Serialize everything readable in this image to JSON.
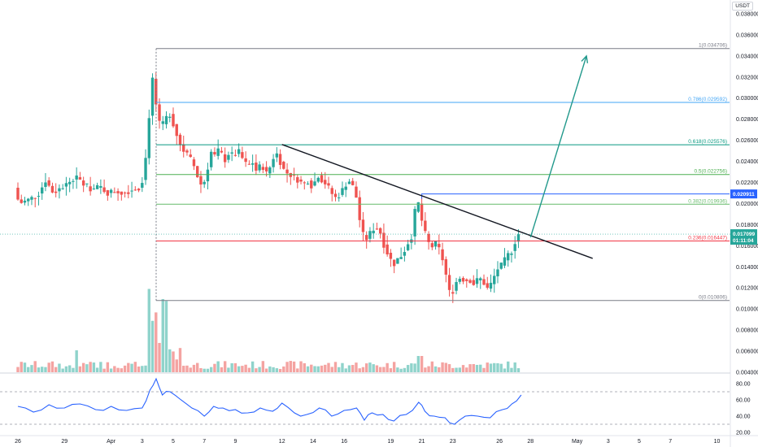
{
  "currency": "USDT",
  "colors": {
    "up": "#26a69a",
    "down": "#ef5350",
    "vol_up": "#8fd3cb",
    "vol_down": "#f4a3a1",
    "rsi": "#2962ff",
    "trendline": "#131722",
    "arrow": "#22998c",
    "last_price_bg": "#26a69a",
    "level_tag_bg": "#2962ff"
  },
  "chart_data": {
    "type": "candlestick",
    "price_axis": {
      "ylim": [
        0.004,
        0.039
      ],
      "ticks": [
        "0.038000",
        "0.036000",
        "0.034000",
        "0.032000",
        "0.030000",
        "0.028000",
        "0.026000",
        "0.024000",
        "0.022000",
        "0.020000",
        "0.018000",
        "0.016000",
        "0.014000",
        "0.012000",
        "0.010000",
        "0.008000",
        "0.006000",
        "0.004000"
      ]
    },
    "rsi_axis": {
      "ylim": [
        20,
        90
      ],
      "ticks": [
        "80.00",
        "60.00",
        "40.00",
        "20.00"
      ],
      "bands": [
        70,
        30
      ]
    },
    "x_labels": [
      {
        "label": "26",
        "day": 0
      },
      {
        "label": "29",
        "day": 3
      },
      {
        "label": "Apr",
        "day": 6
      },
      {
        "label": "3",
        "day": 8
      },
      {
        "label": "5",
        "day": 10
      },
      {
        "label": "7",
        "day": 12
      },
      {
        "label": "9",
        "day": 14
      },
      {
        "label": "12",
        "day": 17
      },
      {
        "label": "14",
        "day": 19
      },
      {
        "label": "16",
        "day": 21
      },
      {
        "label": "19",
        "day": 24
      },
      {
        "label": "21",
        "day": 26
      },
      {
        "label": "23",
        "day": 28
      },
      {
        "label": "26",
        "day": 31
      },
      {
        "label": "28",
        "day": 33
      },
      {
        "label": "May",
        "day": 36
      },
      {
        "label": "3",
        "day": 38
      },
      {
        "label": "5",
        "day": 40
      },
      {
        "label": "7",
        "day": 42
      },
      {
        "label": "10",
        "day": 45
      }
    ],
    "price_path": [
      [
        0.0,
        0.0215
      ],
      [
        0.3,
        0.02
      ],
      [
        0.8,
        0.0203
      ],
      [
        1.5,
        0.0208
      ],
      [
        2.0,
        0.0222
      ],
      [
        2.5,
        0.021
      ],
      [
        3.0,
        0.0215
      ],
      [
        3.5,
        0.022
      ],
      [
        4.0,
        0.0225
      ],
      [
        4.5,
        0.0218
      ],
      [
        5.0,
        0.0213
      ],
      [
        5.5,
        0.0216
      ],
      [
        6.0,
        0.021
      ],
      [
        6.5,
        0.0212
      ],
      [
        7.0,
        0.021
      ],
      [
        7.5,
        0.0213
      ],
      [
        8.0,
        0.0215
      ],
      [
        8.3,
        0.0225
      ],
      [
        8.5,
        0.025
      ],
      [
        8.7,
        0.029
      ],
      [
        8.9,
        0.032
      ],
      [
        9.1,
        0.0295
      ],
      [
        9.4,
        0.027
      ],
      [
        9.7,
        0.028
      ],
      [
        10.0,
        0.0285
      ],
      [
        10.3,
        0.0272
      ],
      [
        10.6,
        0.0258
      ],
      [
        10.9,
        0.025
      ],
      [
        11.2,
        0.0245
      ],
      [
        11.5,
        0.0238
      ],
      [
        11.8,
        0.0225
      ],
      [
        12.1,
        0.0215
      ],
      [
        12.4,
        0.023
      ],
      [
        12.6,
        0.025
      ],
      [
        12.9,
        0.0245
      ],
      [
        13.2,
        0.0252
      ],
      [
        13.5,
        0.024
      ],
      [
        13.8,
        0.0248
      ],
      [
        14.1,
        0.0245
      ],
      [
        14.4,
        0.025
      ],
      [
        14.7,
        0.0242
      ],
      [
        15.0,
        0.0235
      ],
      [
        15.3,
        0.024
      ],
      [
        15.6,
        0.023
      ],
      [
        15.9,
        0.0238
      ],
      [
        16.2,
        0.0228
      ],
      [
        16.5,
        0.0236
      ],
      [
        16.8,
        0.025
      ],
      [
        17.1,
        0.024
      ],
      [
        17.4,
        0.023
      ],
      [
        17.7,
        0.0228
      ],
      [
        18.0,
        0.0225
      ],
      [
        18.3,
        0.0222
      ],
      [
        18.6,
        0.0218
      ],
      [
        18.9,
        0.0222
      ],
      [
        19.2,
        0.0215
      ],
      [
        19.5,
        0.0228
      ],
      [
        19.8,
        0.0222
      ],
      [
        20.1,
        0.0218
      ],
      [
        20.4,
        0.021
      ],
      [
        20.7,
        0.0205
      ],
      [
        21.0,
        0.021
      ],
      [
        21.3,
        0.0218
      ],
      [
        21.6,
        0.0222
      ],
      [
        21.9,
        0.0212
      ],
      [
        22.1,
        0.02
      ],
      [
        22.3,
        0.0175
      ],
      [
        22.6,
        0.0165
      ],
      [
        22.9,
        0.0172
      ],
      [
        23.2,
        0.0178
      ],
      [
        23.5,
        0.0175
      ],
      [
        23.8,
        0.016
      ],
      [
        24.1,
        0.015
      ],
      [
        24.4,
        0.0142
      ],
      [
        24.7,
        0.0148
      ],
      [
        25.0,
        0.0152
      ],
      [
        25.3,
        0.0162
      ],
      [
        25.6,
        0.017
      ],
      [
        25.8,
        0.0195
      ],
      [
        26.0,
        0.02
      ],
      [
        26.2,
        0.0185
      ],
      [
        26.5,
        0.0168
      ],
      [
        26.8,
        0.0158
      ],
      [
        27.1,
        0.0162
      ],
      [
        27.4,
        0.0155
      ],
      [
        27.7,
        0.014
      ],
      [
        27.9,
        0.012
      ],
      [
        28.1,
        0.0112
      ],
      [
        28.4,
        0.0125
      ],
      [
        28.7,
        0.013
      ],
      [
        29.0,
        0.0127
      ],
      [
        29.3,
        0.0128
      ],
      [
        29.6,
        0.0123
      ],
      [
        29.9,
        0.013
      ],
      [
        30.2,
        0.0125
      ],
      [
        30.5,
        0.0118
      ],
      [
        30.8,
        0.0128
      ],
      [
        31.1,
        0.0138
      ],
      [
        31.4,
        0.0142
      ],
      [
        31.7,
        0.015
      ],
      [
        32.0,
        0.0155
      ],
      [
        32.4,
        0.0171
      ]
    ],
    "fib_levels": [
      {
        "label": "1(0.034706)",
        "value": 0.034706,
        "color": "#787b86"
      },
      {
        "label": "0.786(0.029592)",
        "value": 0.029592,
        "color": "#42a5f5"
      },
      {
        "label": "0.618(0.025576)",
        "value": 0.025576,
        "color": "#089981"
      },
      {
        "label": "0.5(0.022756)",
        "value": 0.022756,
        "color": "#4caf50"
      },
      {
        "label": "0.382(0.019936)",
        "value": 0.019936,
        "color": "#66bb6a"
      },
      {
        "label": "0.236(0.016447)",
        "value": 0.016447,
        "color": "#f23645"
      },
      {
        "label": "0(0.010806)",
        "value": 0.010806,
        "color": "#787b86"
      }
    ],
    "fib_start_day": 8.9,
    "horizontal_level": {
      "value": 0.020911,
      "start_day": 26.0,
      "color": "#2962ff"
    },
    "last_price": {
      "value": "0.017099",
      "countdown": "01:11:04",
      "y": 0.017099
    },
    "level_tag": {
      "value": "0.020911",
      "y": 0.020911
    },
    "trendline": {
      "from": [
        17.0,
        0.0256
      ],
      "to": [
        37.0,
        0.0148
      ]
    },
    "arrow": {
      "from": [
        33.0,
        0.0168
      ],
      "to": [
        36.6,
        0.034
      ]
    },
    "rsi_path": [
      [
        0.0,
        52
      ],
      [
        1.0,
        45
      ],
      [
        2.0,
        54
      ],
      [
        3.0,
        50
      ],
      [
        4.0,
        55
      ],
      [
        5.0,
        48
      ],
      [
        6.0,
        52
      ],
      [
        7.0,
        47
      ],
      [
        8.0,
        50
      ],
      [
        8.5,
        72
      ],
      [
        8.9,
        86
      ],
      [
        9.3,
        66
      ],
      [
        9.8,
        70
      ],
      [
        10.5,
        60
      ],
      [
        11.2,
        50
      ],
      [
        12.0,
        40
      ],
      [
        12.6,
        52
      ],
      [
        13.2,
        50
      ],
      [
        14.0,
        48
      ],
      [
        14.8,
        44
      ],
      [
        15.6,
        50
      ],
      [
        16.4,
        46
      ],
      [
        17.0,
        56
      ],
      [
        17.8,
        44
      ],
      [
        18.6,
        42
      ],
      [
        19.4,
        50
      ],
      [
        20.2,
        40
      ],
      [
        21.0,
        47
      ],
      [
        21.8,
        50
      ],
      [
        22.3,
        35
      ],
      [
        22.8,
        44
      ],
      [
        23.5,
        42
      ],
      [
        24.2,
        34
      ],
      [
        25.0,
        42
      ],
      [
        25.8,
        57
      ],
      [
        26.2,
        46
      ],
      [
        26.8,
        40
      ],
      [
        27.5,
        38
      ],
      [
        28.1,
        30
      ],
      [
        28.8,
        40
      ],
      [
        29.6,
        40
      ],
      [
        30.4,
        38
      ],
      [
        31.2,
        48
      ],
      [
        31.8,
        55
      ],
      [
        32.4,
        66
      ]
    ]
  }
}
